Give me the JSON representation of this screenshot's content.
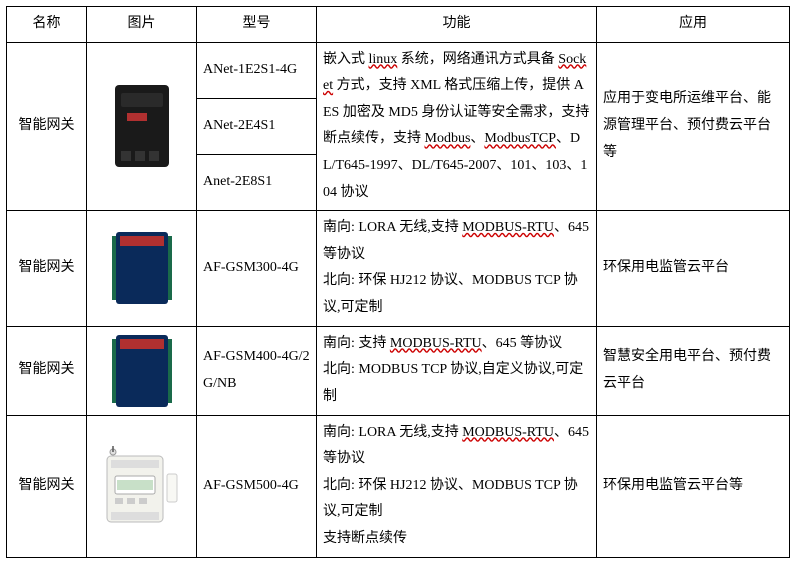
{
  "colors": {
    "border": "#000000",
    "text": "#000000",
    "background": "#ffffff",
    "wavy": "#cc0000"
  },
  "headers": {
    "name": "名称",
    "image": "图片",
    "model": "型号",
    "function": "功能",
    "application": "应用"
  },
  "rows": [
    {
      "name": "智能网关",
      "image_kind": "gateway-box",
      "models": [
        "ANet-1E2S1-4G",
        "ANet-2E4S1",
        "Anet-2E8S1"
      ],
      "function_html": "嵌入式 <span class=\"wavy\">linux</span> 系统，网络通讯方式具备 <span class=\"wavy\">Socket</span> 方式，支持 XML 格式压缩上传，提供 AES 加密及 MD5 身份认证等安全需求，支持断点续传，支持 <span class=\"wavy\">Modbus</span>、<span class=\"wavy\">ModbusTCP</span>、DL/T645-1997、DL/T645-2007、101、103、104 协议",
      "application": "应用于变电所运维平台、能源管理平台、预付费云平台等"
    },
    {
      "name": "智能网关",
      "image_kind": "blue-panel",
      "model": "AF-GSM300-4G",
      "function_html": "南向: LORA 无线,支持 <span class=\"wavy\">MODBUS-RTU</span>、645 等协议<br>北向: 环保 HJ212 协议、MODBUS TCP 协议,可定制",
      "application": "环保用电监管云平台"
    },
    {
      "name": "智能网关",
      "image_kind": "blue-panel",
      "model": "AF-GSM400-4G/2G/NB",
      "function_html": "南向: 支持 <span class=\"wavy\">MODBUS-RTU</span>、645 等协议<br>北向: MODBUS TCP 协议,自定义协议,可定制",
      "application": "智慧安全用电平台、预付费云平台"
    },
    {
      "name": "智能网关",
      "image_kind": "din-meter",
      "model": "AF-GSM500-4G",
      "function_html": "南向: LORA 无线,支持 <span class=\"wavy\">MODBUS-RTU</span>、645 等协议<br>北向: 环保 HJ212 协议、MODBUS TCP 协议,可定制<br>支持断点续传",
      "application": "环保用电监管云平台等"
    }
  ]
}
